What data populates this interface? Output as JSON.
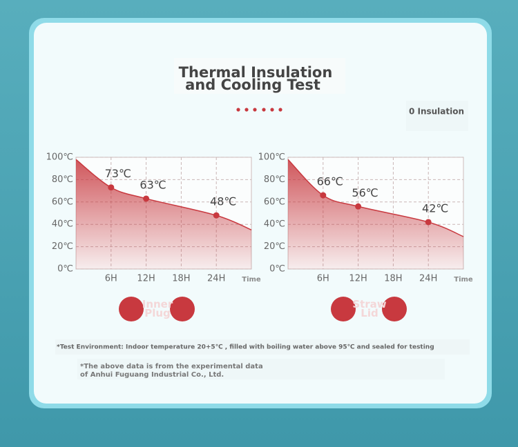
{
  "header": {
    "title_lines": [
      "Thermal Insulation",
      "and Cooling Test"
    ],
    "badge": "0 Insulation"
  },
  "chart_data": [
    {
      "type": "area",
      "x_label": "Time",
      "xlim": [
        0,
        30
      ],
      "ylim": [
        0,
        100
      ],
      "grid": true,
      "xticks": [
        {
          "value": 6,
          "label": "6H"
        },
        {
          "value": 12,
          "label": "12H"
        },
        {
          "value": 18,
          "label": "18H"
        },
        {
          "value": 24,
          "label": "24H"
        }
      ],
      "yticks": [
        {
          "value": 0,
          "label": "0℃"
        },
        {
          "value": 20,
          "label": "20℃"
        },
        {
          "value": 40,
          "label": "40℃"
        },
        {
          "value": 60,
          "label": "60℃"
        },
        {
          "value": 80,
          "label": "80℃"
        },
        {
          "value": 100,
          "label": "100℃"
        }
      ],
      "series": [
        {
          "name": "Inner Plug",
          "color": "#c8393f",
          "x": [
            0,
            6,
            12,
            24,
            30
          ],
          "values": [
            98,
            73,
            63,
            48,
            35
          ],
          "value_labels": [
            null,
            "73℃",
            "63℃",
            "48℃",
            null
          ]
        }
      ]
    },
    {
      "type": "area",
      "x_label": "Time",
      "xlim": [
        0,
        30
      ],
      "ylim": [
        0,
        100
      ],
      "grid": true,
      "xticks": [
        {
          "value": 6,
          "label": "6H"
        },
        {
          "value": 12,
          "label": "12H"
        },
        {
          "value": 18,
          "label": "18H"
        },
        {
          "value": 24,
          "label": "24H"
        }
      ],
      "yticks": [
        {
          "value": 0,
          "label": "0℃"
        },
        {
          "value": 20,
          "label": "20℃"
        },
        {
          "value": 40,
          "label": "40℃"
        },
        {
          "value": 60,
          "label": "60℃"
        },
        {
          "value": 80,
          "label": "80℃"
        },
        {
          "value": 100,
          "label": "100℃"
        }
      ],
      "series": [
        {
          "name": "Straw Lid",
          "color": "#c8393f",
          "x": [
            0,
            6,
            12,
            24,
            30
          ],
          "values": [
            98,
            66,
            56,
            42,
            29
          ],
          "value_labels": [
            null,
            "66℃",
            "56℃",
            "42℃",
            null
          ]
        }
      ]
    }
  ],
  "notes": [
    "*Test Environment: Indoor temperature 20+5℃ , filled with boiling water above 95℃  and sealed for testing",
    "*The above data is from the experimental data",
    " of Anhui Fuguang Industrial Co., Ltd."
  ]
}
